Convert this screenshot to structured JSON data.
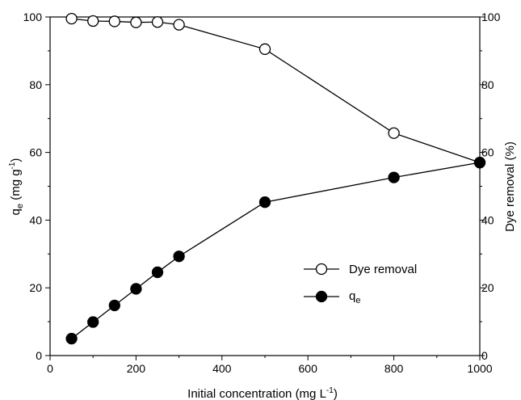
{
  "chart_data": {
    "type": "line",
    "x_axis": {
      "label": "Initial concentration (mg L",
      "label_sup": "-1",
      "label_end": ")",
      "range": [
        0,
        1000
      ],
      "ticks": [
        0,
        200,
        400,
        600,
        800,
        1000
      ],
      "tick_labels": [
        "0",
        "200",
        "400",
        "600",
        "800",
        "1000"
      ]
    },
    "y_left": {
      "label_base": "q",
      "label_sub": "e",
      "label_mid": " (mg g",
      "label_sup": "-1",
      "label_end": ")",
      "range": [
        0,
        100
      ],
      "ticks": [
        0,
        20,
        40,
        60,
        80,
        100
      ],
      "tick_labels": [
        "0",
        "20",
        "40",
        "60",
        "80",
        "100"
      ]
    },
    "y_right": {
      "label": "Dye removal (%)",
      "range": [
        0,
        100
      ],
      "ticks": [
        0,
        20,
        40,
        60,
        80,
        100
      ],
      "tick_labels": [
        "0",
        "20",
        "40",
        "60",
        "80",
        "100"
      ]
    },
    "series": [
      {
        "name": "Dye removal",
        "axis": "right",
        "marker": "open-circle",
        "x": [
          50,
          100,
          150,
          200,
          250,
          300,
          500,
          800,
          1000
        ],
        "y": [
          99.5,
          98.8,
          98.7,
          98.4,
          98.5,
          97.7,
          90.5,
          65.7,
          57.0
        ]
      },
      {
        "name_base": "q",
        "name_sub": "e",
        "axis": "left",
        "marker": "filled-circle",
        "x": [
          50,
          100,
          150,
          200,
          250,
          300,
          500,
          800,
          1000
        ],
        "y": [
          5.0,
          9.9,
          14.8,
          19.7,
          24.6,
          29.3,
          45.3,
          52.6,
          57.0
        ]
      }
    ],
    "legend_placement": "center-right",
    "grid": false
  }
}
